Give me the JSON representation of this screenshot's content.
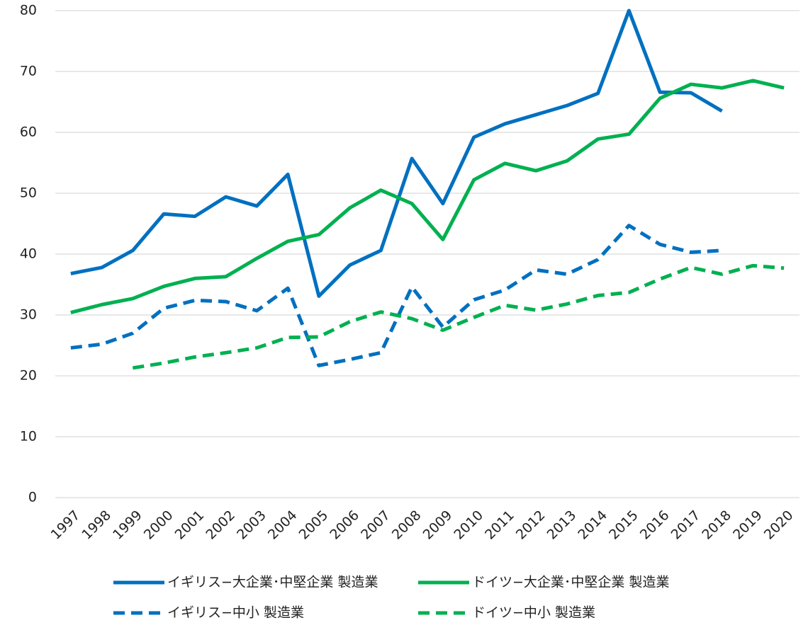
{
  "chart_data": {
    "type": "line",
    "categories": [
      "1997",
      "1998",
      "1999",
      "2000",
      "2001",
      "2002",
      "2003",
      "2004",
      "2005",
      "2006",
      "2007",
      "2008",
      "2009",
      "2010",
      "2011",
      "2012",
      "2013",
      "2014",
      "2015",
      "2016",
      "2017",
      "2018",
      "2019",
      "2020"
    ],
    "series": [
      {
        "name": "イギリス−大企業･中堅企業 製造業",
        "color": "#0070c0",
        "style": "solid",
        "values": [
          36.8,
          37.8,
          40.6,
          46.6,
          46.2,
          49.4,
          47.9,
          53.1,
          33.1,
          38.2,
          40.6,
          55.7,
          48.3,
          59.2,
          61.4,
          62.9,
          64.4,
          66.4,
          80.0,
          66.6,
          66.5,
          63.5,
          null,
          null
        ]
      },
      {
        "name": "ドイツ−大企業･中堅企業 製造業",
        "color": "#00b050",
        "style": "solid",
        "values": [
          30.4,
          31.7,
          32.7,
          34.7,
          36.0,
          36.3,
          39.3,
          42.1,
          43.2,
          47.6,
          50.5,
          48.3,
          42.4,
          52.2,
          54.9,
          53.7,
          55.3,
          58.9,
          59.7,
          65.6,
          67.9,
          67.3,
          68.5,
          67.3
        ]
      },
      {
        "name": "イギリス−中小 製造業",
        "color": "#0070c0",
        "style": "dashed",
        "values": [
          24.6,
          25.2,
          27.0,
          31.1,
          32.4,
          32.2,
          30.7,
          34.4,
          21.7,
          22.7,
          23.8,
          34.6,
          28.0,
          32.5,
          34.1,
          37.4,
          36.7,
          39.1,
          44.7,
          41.6,
          40.3,
          40.6,
          null,
          null
        ]
      },
      {
        "name": "ドイツ−中小 製造業",
        "color": "#00b050",
        "style": "dashed",
        "values": [
          null,
          null,
          21.3,
          22.1,
          23.1,
          23.8,
          24.6,
          26.3,
          26.4,
          28.9,
          30.5,
          29.4,
          27.5,
          29.6,
          31.6,
          30.8,
          31.8,
          33.2,
          33.7,
          35.9,
          37.8,
          36.7,
          38.1,
          37.7
        ]
      }
    ],
    "ylim": [
      0,
      80
    ],
    "yticks": [
      0,
      10,
      20,
      30,
      40,
      50,
      60,
      70,
      80
    ],
    "grid": true,
    "legend": "bottom"
  }
}
